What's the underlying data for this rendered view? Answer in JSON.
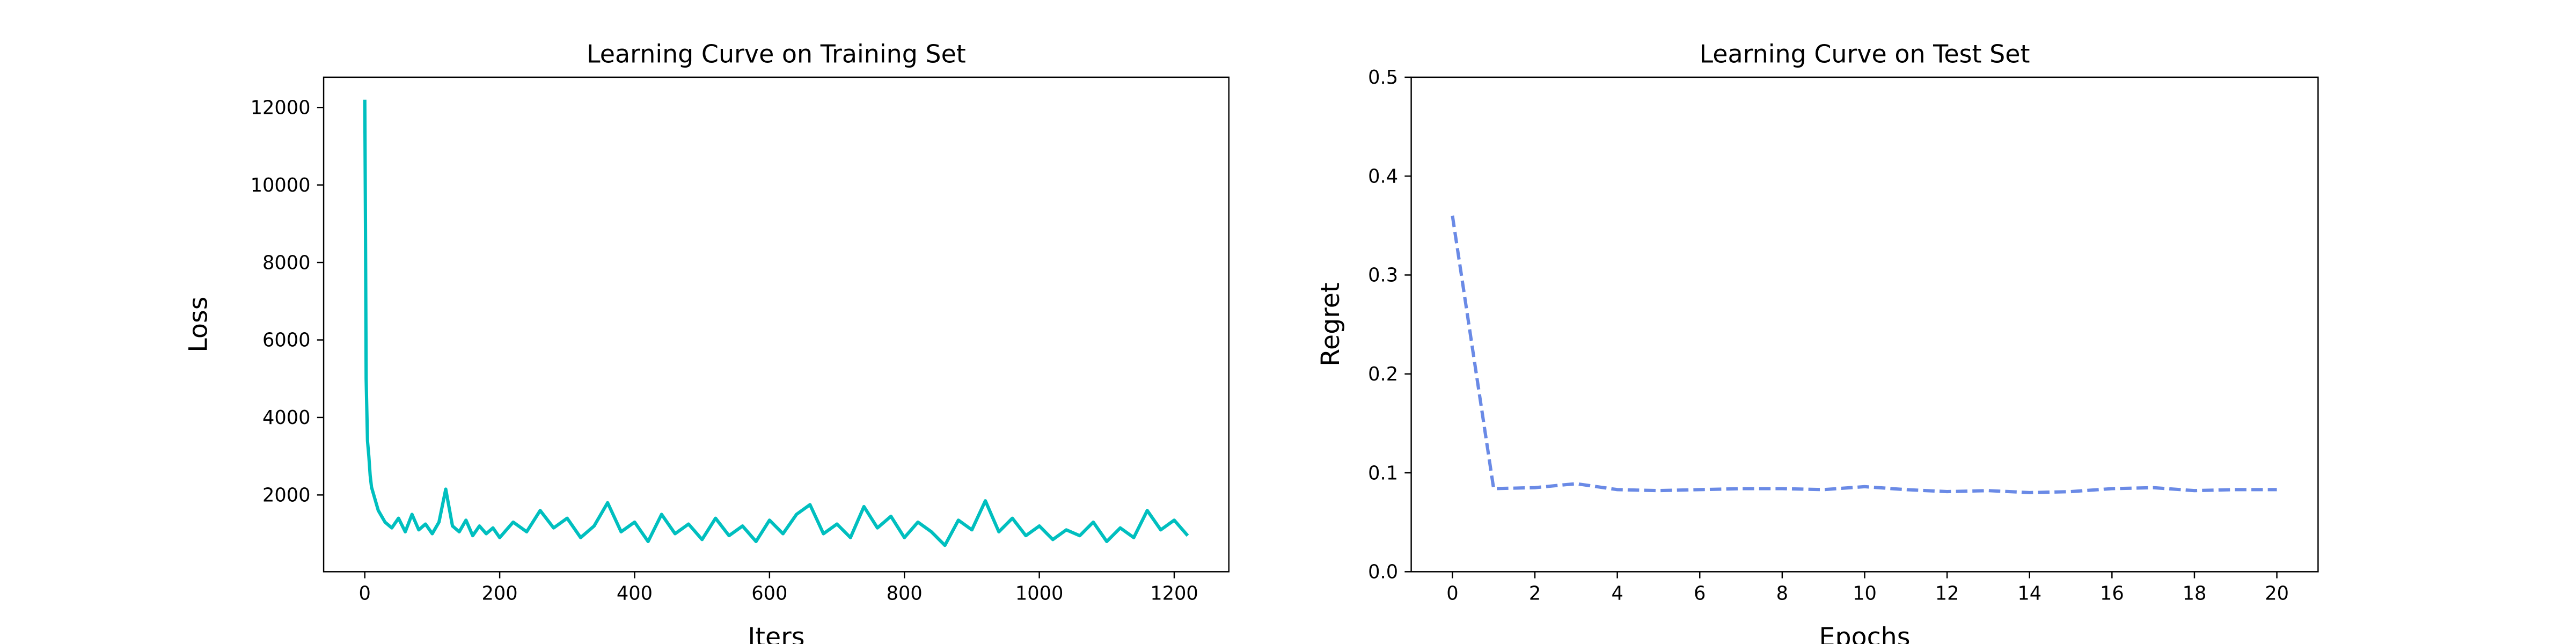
{
  "chart_data": [
    {
      "type": "line",
      "title": "Learning Curve on Training Set",
      "xlabel": "Iters",
      "ylabel": "Loss",
      "x": [
        0,
        1,
        2,
        4,
        6,
        8,
        10,
        15,
        20,
        30,
        40,
        50,
        60,
        70,
        80,
        90,
        100,
        110,
        120,
        130,
        140,
        150,
        160,
        170,
        180,
        190,
        200,
        220,
        240,
        260,
        280,
        300,
        320,
        340,
        360,
        380,
        400,
        420,
        440,
        460,
        480,
        500,
        520,
        540,
        560,
        580,
        600,
        620,
        640,
        660,
        680,
        700,
        720,
        740,
        760,
        780,
        800,
        820,
        840,
        860,
        880,
        900,
        920,
        940,
        960,
        980,
        1000,
        1020,
        1040,
        1060,
        1080,
        1100,
        1120,
        1140,
        1160,
        1180,
        1200,
        1220
      ],
      "series": [
        {
          "color": "#00bfbf",
          "linestyle": "solid",
          "values": [
            12200,
            9000,
            5000,
            3400,
            3000,
            2500,
            2200,
            1900,
            1600,
            1300,
            1150,
            1400,
            1050,
            1500,
            1100,
            1250,
            1000,
            1300,
            2150,
            1200,
            1050,
            1350,
            950,
            1200,
            1000,
            1150,
            900,
            1300,
            1050,
            1600,
            1150,
            1400,
            900,
            1200,
            1800,
            1050,
            1300,
            800,
            1500,
            1000,
            1250,
            850,
            1400,
            950,
            1200,
            800,
            1350,
            1000,
            1500,
            1750,
            1000,
            1250,
            900,
            1700,
            1150,
            1450,
            900,
            1300,
            1050,
            700,
            1350,
            1100,
            1850,
            1050,
            1400,
            950,
            1200,
            850,
            1100,
            950,
            1300,
            800,
            1150,
            900,
            1600,
            1100,
            1350,
            950
          ]
        }
      ],
      "xlim": [
        -61,
        1281
      ],
      "ylim": [
        20,
        12780
      ],
      "xticks": [
        0,
        200,
        400,
        600,
        800,
        1000,
        1200
      ],
      "yticks": [
        2000,
        4000,
        6000,
        8000,
        10000,
        12000
      ]
    },
    {
      "type": "line",
      "title": "Learning Curve on Test Set",
      "xlabel": "Epochs",
      "ylabel": "Regret",
      "x": [
        0,
        1,
        2,
        3,
        4,
        5,
        6,
        7,
        8,
        9,
        10,
        11,
        12,
        13,
        14,
        15,
        16,
        17,
        18,
        19,
        20
      ],
      "series": [
        {
          "color": "#6a8ae6",
          "linestyle": "dashed",
          "values": [
            0.36,
            0.084,
            0.085,
            0.089,
            0.083,
            0.082,
            0.083,
            0.084,
            0.084,
            0.083,
            0.086,
            0.083,
            0.081,
            0.082,
            0.08,
            0.081,
            0.084,
            0.085,
            0.082,
            0.083,
            0.083
          ]
        }
      ],
      "xlim": [
        -1,
        21
      ],
      "ylim": [
        0,
        0.5
      ],
      "xticks": [
        0,
        2,
        4,
        6,
        8,
        10,
        12,
        14,
        16,
        18,
        20
      ],
      "yticks": [
        {
          "value": 0,
          "label": "0.0"
        },
        0.1,
        0.2,
        0.3,
        0.4,
        0.5
      ]
    }
  ]
}
